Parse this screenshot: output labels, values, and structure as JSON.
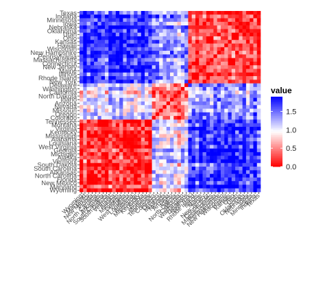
{
  "chart_data": {
    "type": "heatmap",
    "title": "",
    "xlabel": "",
    "ylabel": "",
    "states_top_to_bottom": [
      "Texas",
      "Indiana",
      "Minnesota",
      "Iowa",
      "Nebraska",
      "Oklahoma",
      "Utah",
      "Ohio",
      "Kansas",
      "Hawaii",
      "Wisconsin",
      "New Hampshire",
      "Pennsylvania",
      "Massachusetts",
      "Connecticut",
      "New Jersey",
      "Maine",
      "Illinois",
      "Rhode Island",
      "New York",
      "Delaware",
      "Washington",
      "California",
      "North Dakota",
      "Idaho",
      "Arizona",
      "Nevada",
      "Missouri",
      "Oregon",
      "Colorado",
      "Tennessee",
      "Montana",
      "Virginia",
      "Kentucky",
      "Mississippi",
      "Alabama",
      "Louisiana",
      "West Virginia",
      "Georgia",
      "Michigan",
      "Alaska",
      "Vermont",
      "South Dakota",
      "South Carolina",
      "Arkansas",
      "North Carolina",
      "Florida",
      "New Mexico",
      "Maryland",
      "Wyoming"
    ],
    "x_order": "reverse of states_top_to_bottom (Wyoming at left, Texas at right)",
    "cluster_sizes_top_to_bottom": [
      20,
      10,
      20
    ],
    "block_values": [
      [
        0.25,
        1.25,
        1.7
      ],
      [
        1.25,
        0.3,
        1.0
      ],
      [
        1.7,
        1.0,
        0.2
      ]
    ],
    "fill_range": [
      0,
      1.9
    ],
    "legend": {
      "title": "value",
      "ticks": [
        "1.5",
        "1.0",
        "0.5",
        "0.0"
      ],
      "tick_values": [
        1.5,
        1.0,
        0.5,
        0.0
      ],
      "placement": "right"
    },
    "colors": {
      "low": "#ff0000",
      "mid": "#ffffff",
      "high": "#0000ff"
    }
  }
}
